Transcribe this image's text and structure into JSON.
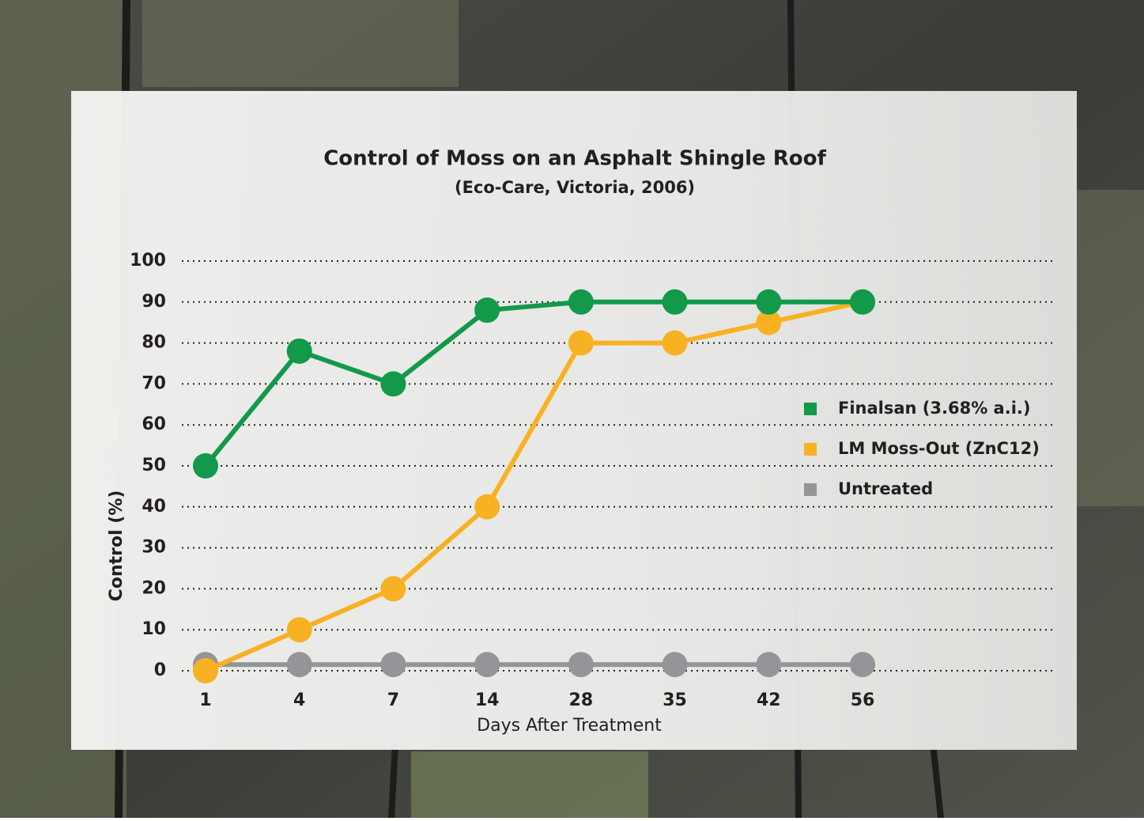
{
  "chart_data": {
    "type": "line",
    "title": "Control of Moss on an Asphalt Shingle Roof",
    "subtitle": "(Eco-Care, Victoria, 2006)",
    "x_label": "Days After Treatment",
    "y_label": "Control (%)",
    "categories": [
      "1",
      "4",
      "7",
      "14",
      "28",
      "35",
      "42",
      "56"
    ],
    "series": [
      {
        "name": "Finalsan (3.68% a.i.)",
        "color": "#12994a",
        "values": [
          50,
          78,
          70,
          88,
          90,
          90,
          90,
          90
        ]
      },
      {
        "name": "LM Moss-Out (ZnC12)",
        "color": "#f8b122",
        "values": [
          0,
          10,
          20,
          40,
          80,
          80,
          85,
          90
        ]
      },
      {
        "name": "Untreated",
        "color": "#939598",
        "values": [
          1.5,
          1.5,
          1.5,
          1.5,
          1.5,
          1.5,
          1.5,
          1.5
        ]
      }
    ],
    "ylim": [
      0,
      100
    ],
    "yticks": [
      0,
      10,
      20,
      30,
      40,
      50,
      60,
      70,
      80,
      90,
      100
    ],
    "grid": true,
    "legend": "right"
  }
}
